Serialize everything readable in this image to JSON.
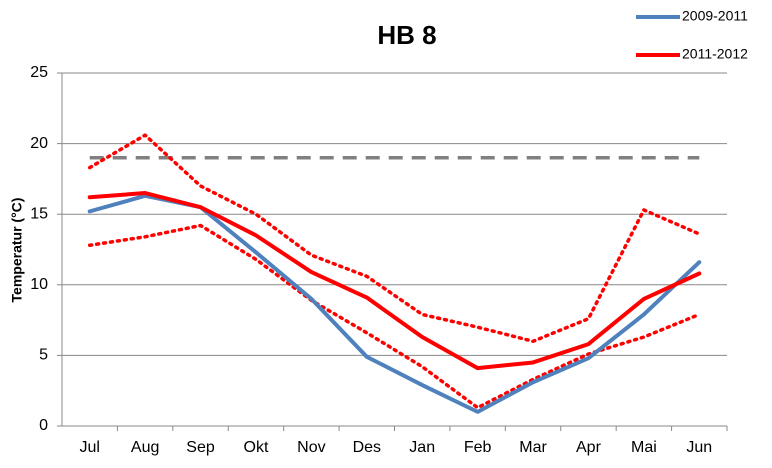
{
  "chart_data": {
    "type": "line",
    "title": "HB 8",
    "y_label": "Temperatur (°C)",
    "categories": [
      "Jul",
      "Aug",
      "Sep",
      "Okt",
      "Nov",
      "Des",
      "Jan",
      "Feb",
      "Mar",
      "Apr",
      "Mai",
      "Jun"
    ],
    "ylim": [
      0,
      25
    ],
    "yticks": [
      0,
      5,
      10,
      15,
      20,
      25
    ],
    "grid": true,
    "legend": "top-right",
    "series": [
      {
        "color": "#808080",
        "style": "dashed",
        "values": [
          19,
          19,
          19,
          19,
          19,
          19,
          19,
          19,
          19,
          19,
          19,
          19
        ]
      },
      {
        "color": "#ff0000",
        "style": "dotted",
        "values": [
          18.3,
          20.6,
          17.0,
          15.0,
          12.1,
          10.6,
          7.9,
          7.0,
          6.0,
          7.6,
          15.3,
          13.6
        ]
      },
      {
        "color": "#ff0000",
        "style": "dotted",
        "values": [
          12.8,
          13.4,
          14.2,
          11.8,
          8.9,
          6.6,
          4.2,
          1.3,
          3.3,
          5.1,
          6.3,
          7.9
        ]
      },
      {
        "name": "2009-2011",
        "color": "#4f81bd",
        "style": "solid",
        "values": [
          15.2,
          16.3,
          15.5,
          12.3,
          9.0,
          4.9,
          2.9,
          1.0,
          3.1,
          4.8,
          7.9,
          11.6
        ]
      },
      {
        "name": "2011-2012",
        "color": "#ff0000",
        "style": "solid",
        "values": [
          16.2,
          16.5,
          15.5,
          13.5,
          10.9,
          9.1,
          6.3,
          4.1,
          4.5,
          5.8,
          9.0,
          10.8
        ]
      }
    ]
  }
}
